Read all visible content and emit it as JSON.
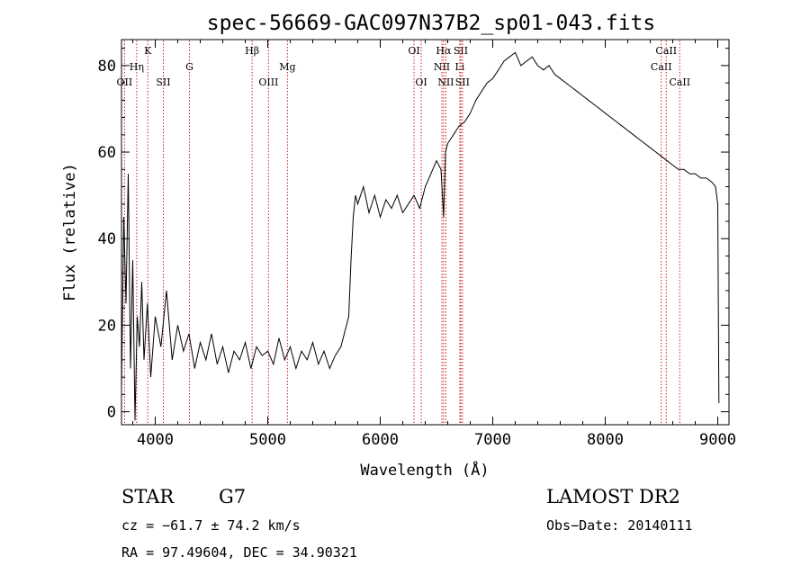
{
  "chart_data": {
    "type": "line",
    "title": "spec-56669-GAC097N37B2_sp01-043.fits",
    "xlabel": "Wavelength (Å)",
    "ylabel": "Flux (relative)",
    "xlim": [
      3700,
      9100
    ],
    "ylim": [
      -3,
      86
    ],
    "xticks": [
      4000,
      5000,
      6000,
      7000,
      8000,
      9000
    ],
    "yticks": [
      0,
      20,
      40,
      60,
      80
    ],
    "grid": false,
    "series": [
      {
        "x": [
          3700,
          3720,
          3740,
          3760,
          3780,
          3800,
          3820,
          3840,
          3860,
          3880,
          3900,
          3930,
          3960,
          4000,
          4050,
          4100,
          4150,
          4200,
          4250,
          4300,
          4350,
          4400,
          4450,
          4500,
          4550,
          4600,
          4650,
          4700,
          4750,
          4800,
          4850,
          4900,
          4950,
          5000,
          5050,
          5100,
          5150,
          5200,
          5250,
          5300,
          5350,
          5400,
          5450,
          5500,
          5550,
          5600,
          5650,
          5700,
          5720,
          5740,
          5760,
          5780,
          5800,
          5850,
          5900,
          5950,
          6000,
          6050,
          6100,
          6150,
          6200,
          6250,
          6300,
          6350,
          6400,
          6450,
          6500,
          6540,
          6563,
          6580,
          6600,
          6650,
          6700,
          6750,
          6800,
          6850,
          6900,
          6950,
          7000,
          7050,
          7100,
          7150,
          7200,
          7250,
          7300,
          7350,
          7400,
          7450,
          7500,
          7550,
          7600,
          7650,
          7700,
          7750,
          7800,
          7850,
          7900,
          7950,
          8000,
          8050,
          8100,
          8150,
          8200,
          8250,
          8300,
          8350,
          8400,
          8450,
          8500,
          8550,
          8600,
          8650,
          8700,
          8750,
          8800,
          8850,
          8900,
          8950,
          8980,
          9000,
          9010
        ],
        "y": [
          5,
          45,
          25,
          55,
          10,
          35,
          -2,
          22,
          15,
          30,
          12,
          25,
          8,
          22,
          15,
          28,
          12,
          20,
          14,
          18,
          10,
          16,
          12,
          18,
          11,
          15,
          9,
          14,
          12,
          16,
          10,
          15,
          13,
          14,
          11,
          17,
          12,
          15,
          10,
          14,
          12,
          16,
          11,
          14,
          10,
          13,
          15,
          20,
          22,
          35,
          45,
          50,
          48,
          52,
          46,
          50,
          45,
          49,
          47,
          50,
          46,
          48,
          50,
          47,
          52,
          55,
          58,
          56,
          45,
          60,
          62,
          64,
          66,
          67,
          69,
          72,
          74,
          76,
          77,
          79,
          81,
          82,
          83,
          80,
          81,
          82,
          80,
          79,
          80,
          78,
          77,
          76,
          75,
          74,
          73,
          72,
          71,
          70,
          69,
          68,
          67,
          66,
          65,
          64,
          63,
          62,
          61,
          60,
          59,
          58,
          57,
          56,
          56,
          55,
          55,
          54,
          54,
          53,
          52,
          48,
          2
        ]
      }
    ],
    "line_markers": [
      {
        "x": 3727,
        "label": "OII",
        "row": 3
      },
      {
        "x": 3835,
        "label": "Hη",
        "row": 2
      },
      {
        "x": 3934,
        "label": "K",
        "row": 1
      },
      {
        "x": 4072,
        "label": "SII",
        "row": 3
      },
      {
        "x": 4304,
        "label": "G",
        "row": 2
      },
      {
        "x": 4861,
        "label": "Hβ",
        "row": 1
      },
      {
        "x": 5007,
        "label": "OIII",
        "row": 3
      },
      {
        "x": 5175,
        "label": "Mg",
        "row": 2
      },
      {
        "x": 6300,
        "label": "OI",
        "row": 1
      },
      {
        "x": 6364,
        "label": "OI",
        "row": 3
      },
      {
        "x": 6548,
        "label": "NII",
        "row": 2
      },
      {
        "x": 6563,
        "label": "Hα",
        "row": 1
      },
      {
        "x": 6583,
        "label": "NII",
        "row": 3
      },
      {
        "x": 6707,
        "label": "Li",
        "row": 2
      },
      {
        "x": 6716,
        "label": "SII",
        "row": 1
      },
      {
        "x": 6731,
        "label": "SII",
        "row": 3
      },
      {
        "x": 8498,
        "label": "CaII",
        "row": 2
      },
      {
        "x": 8542,
        "label": "CaII",
        "row": 1
      },
      {
        "x": 8662,
        "label": "CaII",
        "row": 3
      }
    ]
  },
  "info": {
    "object_class": "STAR",
    "subclass": "G7",
    "survey": "LAMOST DR2",
    "cz": "cz = −61.7 ± 74.2 km/s",
    "obs_date": "Obs−Date: 20140111",
    "coords": "RA =  97.49604, DEC =  34.90321"
  },
  "colors": {
    "line": "#000000",
    "marker": "#cc2222",
    "axis": "#000000"
  }
}
